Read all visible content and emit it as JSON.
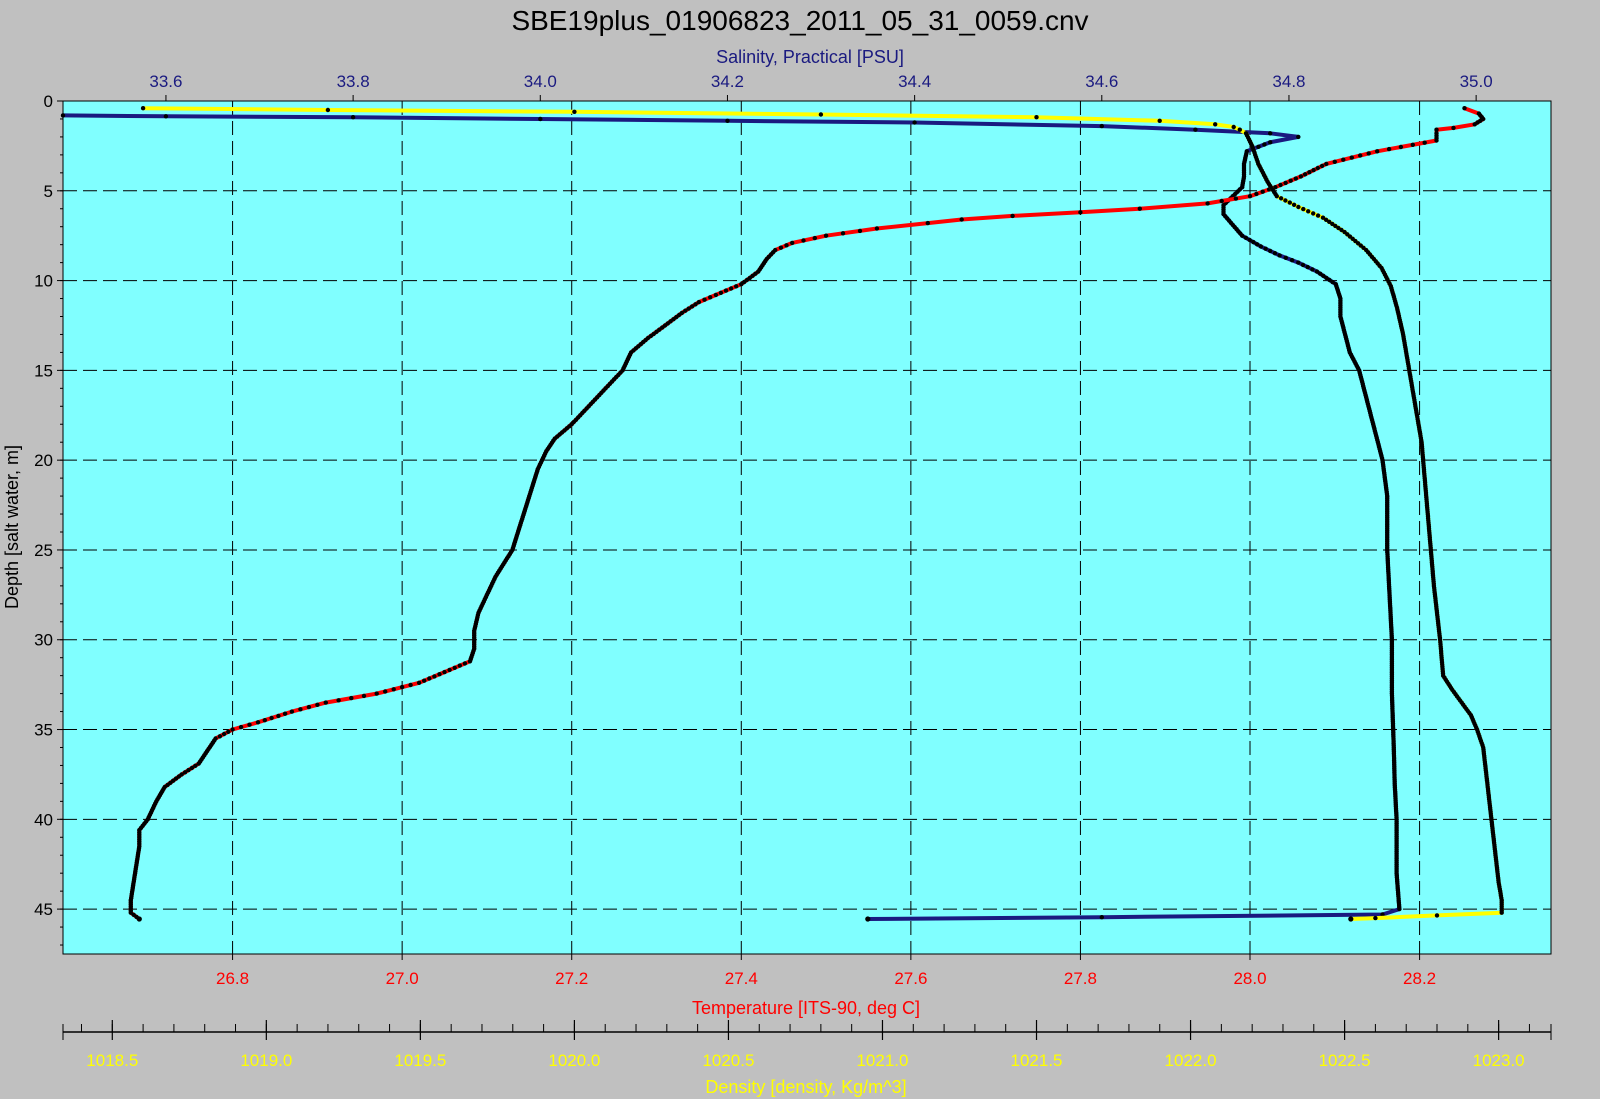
{
  "chart_data": {
    "type": "line",
    "title": "SBE19plus_01906823_2011_05_31_0059.cnv",
    "grid": true,
    "colors": {
      "background": "#c0c0c0",
      "plot_area": "#80ffff",
      "salinity": "#1a1a80",
      "temperature": "#ff0000",
      "density": "#ffff00",
      "depth_axis": "#000000",
      "markers": "#000000"
    },
    "axes": {
      "depth": {
        "label": "Depth [salt water, m]",
        "range": [
          0,
          47.5
        ],
        "reversed": true,
        "ticks": [
          0,
          5,
          10,
          15,
          20,
          25,
          30,
          35,
          40,
          45
        ],
        "tick_labels": [
          "0",
          "5",
          "10",
          "15",
          "20",
          "25",
          "30",
          "35",
          "40",
          "45"
        ]
      },
      "salinity": {
        "label": "Salinity, Practical [PSU]",
        "range": [
          33.49,
          35.08
        ],
        "ticks": [
          33.6,
          33.8,
          34.0,
          34.2,
          34.4,
          34.6,
          34.8,
          35.0
        ],
        "tick_labels": [
          "33.6",
          "33.8",
          "34.0",
          "34.2",
          "34.4",
          "34.6",
          "34.8",
          "35.0"
        ]
      },
      "temperature": {
        "label": "Temperature [ITS-90, deg C]",
        "range": [
          26.6,
          28.355
        ],
        "ticks": [
          26.8,
          27.0,
          27.2,
          27.4,
          27.6,
          27.8,
          28.0,
          28.2
        ],
        "tick_labels": [
          "26.8",
          "27.0",
          "27.2",
          "27.4",
          "27.6",
          "27.8",
          "28.0",
          "28.2"
        ]
      },
      "density": {
        "label": "Density [density, Kg/m^3]",
        "range": [
          1018.34,
          1023.17
        ],
        "ticks": [
          1018.5,
          1019.0,
          1019.5,
          1020.0,
          1020.5,
          1021.0,
          1021.5,
          1022.0,
          1022.5,
          1023.0
        ],
        "tick_labels": [
          "1018.5",
          "1019.0",
          "1019.5",
          "1020.0",
          "1020.5",
          "1021.0",
          "1021.5",
          "1022.0",
          "1022.5",
          "1023.0"
        ],
        "minor_step": 0.1
      }
    },
    "series": [
      {
        "axis": "salinity",
        "color": "#1a1a80",
        "depth": [
          0.8,
          0.85,
          0.9,
          1.0,
          1.1,
          1.2,
          1.4,
          1.6,
          1.8,
          2.0,
          2.3,
          2.8,
          3.5,
          4.2,
          4.8,
          5.3,
          5.8,
          6.3,
          6.9,
          7.5,
          8.1,
          8.6,
          9.0,
          9.5,
          10.2,
          11.0,
          12.0,
          13.0,
          14.0,
          15.0,
          16.0,
          17.0,
          18.0,
          19.0,
          20.0,
          22.0,
          25.0,
          28.0,
          30.0,
          33.0,
          36.0,
          38.0,
          40.0,
          43.0,
          45.0,
          45.3,
          45.45,
          45.55
        ],
        "values": [
          33.49,
          33.6,
          33.8,
          34.0,
          34.2,
          34.4,
          34.6,
          34.7,
          34.78,
          34.81,
          34.78,
          34.755,
          34.752,
          34.752,
          34.75,
          34.74,
          34.73,
          34.73,
          34.74,
          34.75,
          34.77,
          34.79,
          34.81,
          34.83,
          34.85,
          34.855,
          34.855,
          34.86,
          34.865,
          34.875,
          34.88,
          34.885,
          34.89,
          34.895,
          34.9,
          34.905,
          34.905,
          34.908,
          34.91,
          34.91,
          34.912,
          34.913,
          34.915,
          34.915,
          34.918,
          34.9,
          34.6,
          34.35
        ]
      },
      {
        "axis": "temperature",
        "color": "#ff0000",
        "depth": [
          0.4,
          0.7,
          1.0,
          1.3,
          1.5,
          1.6,
          1.8,
          2.2,
          2.8,
          3.5,
          4.2,
          4.8,
          5.3,
          5.7,
          6.0,
          6.2,
          6.4,
          6.6,
          6.8,
          7.1,
          7.5,
          7.9,
          8.3,
          8.8,
          9.5,
          10.2,
          10.8,
          11.2,
          11.8,
          12.5,
          13.2,
          14.0,
          15.0,
          16.0,
          17.0,
          18.0,
          18.8,
          19.5,
          20.5,
          22.0,
          23.5,
          25.0,
          26.5,
          27.5,
          28.5,
          29.5,
          30.5,
          31.2,
          31.8,
          32.4,
          33.0,
          33.5,
          34.0,
          34.6,
          35.0,
          35.5,
          36.2,
          36.9,
          37.5,
          38.2,
          39.0,
          40.0,
          40.6,
          41.5,
          43.0,
          44.5,
          45.2,
          45.55
        ],
        "values": [
          28.253,
          28.27,
          28.275,
          28.265,
          28.24,
          28.22,
          28.22,
          28.22,
          28.15,
          28.09,
          28.06,
          28.03,
          28.0,
          27.95,
          27.87,
          27.8,
          27.72,
          27.66,
          27.62,
          27.56,
          27.5,
          27.46,
          27.44,
          27.43,
          27.42,
          27.4,
          27.37,
          27.35,
          27.33,
          27.31,
          27.29,
          27.27,
          27.26,
          27.24,
          27.22,
          27.2,
          27.18,
          27.17,
          27.16,
          27.15,
          27.14,
          27.13,
          27.11,
          27.1,
          27.09,
          27.085,
          27.085,
          27.08,
          27.05,
          27.02,
          26.97,
          26.91,
          26.87,
          26.83,
          26.8,
          26.78,
          26.77,
          26.76,
          26.74,
          26.72,
          26.71,
          26.7,
          26.69,
          26.69,
          26.685,
          26.68,
          26.68,
          26.69
        ]
      },
      {
        "axis": "density",
        "color": "#ffff00",
        "depth": [
          0.4,
          0.5,
          0.6,
          0.75,
          0.9,
          1.1,
          1.3,
          1.45,
          1.6,
          1.8,
          2.5,
          3.5,
          4.5,
          5.3,
          5.9,
          6.5,
          7.3,
          8.3,
          9.3,
          10.3,
          11.5,
          13.0,
          15.0,
          17.0,
          19.0,
          21.0,
          23.0,
          25.0,
          27.0,
          28.5,
          30.0,
          31.0,
          32.0,
          32.8,
          33.5,
          34.2,
          35.0,
          36.0,
          37.5,
          39.0,
          40.5,
          42.0,
          43.5,
          44.5,
          45.2,
          45.35,
          45.5,
          45.55
        ],
        "values": [
          1018.6,
          1019.2,
          1020.0,
          1020.8,
          1021.5,
          1021.9,
          1022.08,
          1022.14,
          1022.16,
          1022.18,
          1022.2,
          1022.22,
          1022.25,
          1022.28,
          1022.35,
          1022.43,
          1022.5,
          1022.57,
          1022.62,
          1022.65,
          1022.67,
          1022.69,
          1022.71,
          1022.73,
          1022.75,
          1022.76,
          1022.77,
          1022.78,
          1022.79,
          1022.8,
          1022.81,
          1022.815,
          1022.82,
          1022.85,
          1022.88,
          1022.91,
          1022.93,
          1022.95,
          1022.96,
          1022.97,
          1022.98,
          1022.99,
          1023.0,
          1023.01,
          1023.01,
          1022.8,
          1022.6,
          1022.52
        ]
      }
    ]
  }
}
